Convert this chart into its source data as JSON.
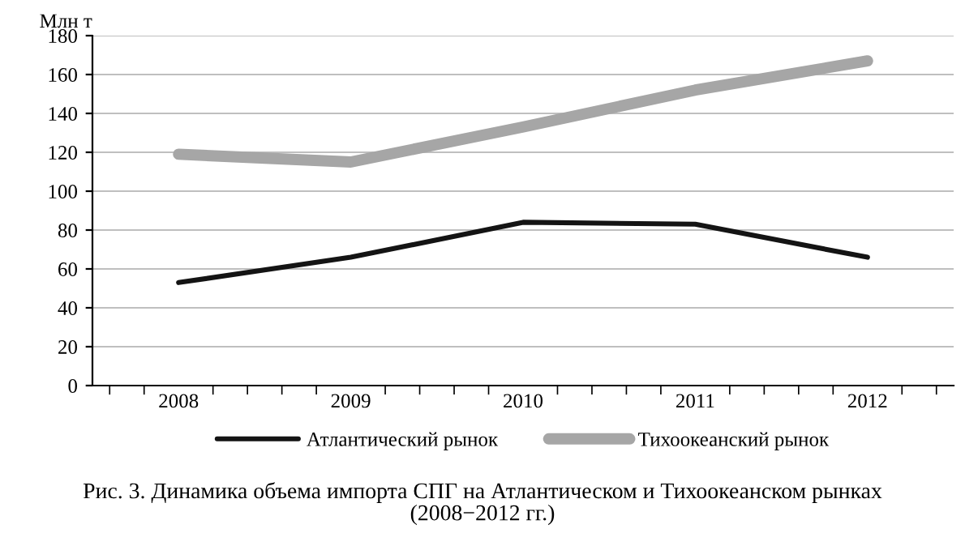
{
  "chart_data": {
    "type": "line",
    "ylabel": "Млн т",
    "categories": [
      "2008",
      "2009",
      "2010",
      "2011",
      "2012"
    ],
    "series": [
      {
        "name": "Атлантический рынок",
        "color": "#141414",
        "values": [
          53,
          66,
          84,
          83,
          66
        ]
      },
      {
        "name": "Тихоокеанский рынок",
        "color": "#a6a6a6",
        "values": [
          119,
          115,
          133,
          152,
          167
        ]
      }
    ],
    "ylim": [
      0,
      180
    ],
    "yticks": [
      0,
      20,
      40,
      60,
      80,
      100,
      120,
      140,
      160,
      180
    ],
    "grid": "y",
    "legend": "bottom",
    "marker": "none",
    "line_style": "solid",
    "annotations": [
      "Рис. 3. Динамика объема импорта СПГ на Атлантическом и Тихоокеанском рынках\n(2008−2012 гг.)"
    ]
  }
}
